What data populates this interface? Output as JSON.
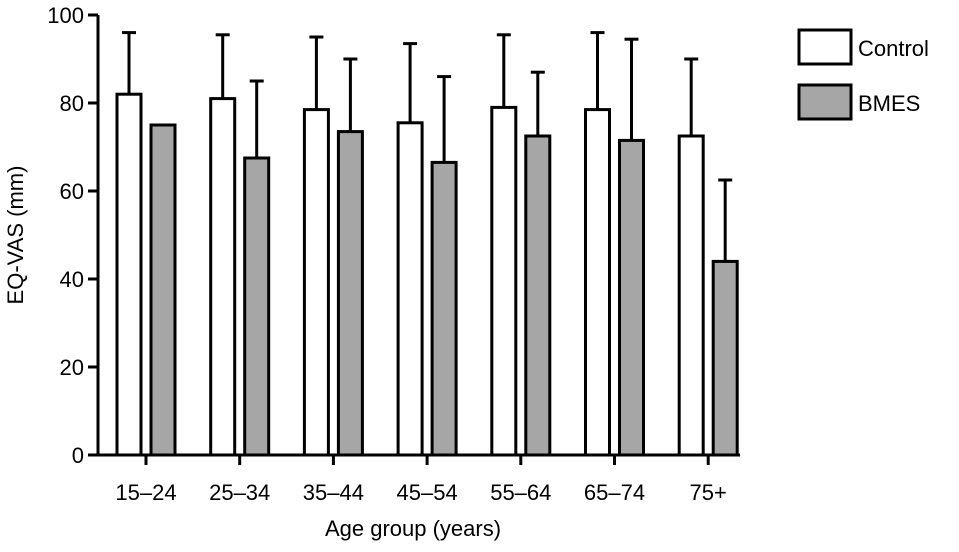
{
  "chart_data": {
    "type": "bar",
    "title": "",
    "xlabel": "Age group (years)",
    "ylabel": "EQ-VAS (mm)",
    "ylim": [
      0,
      100
    ],
    "yticks": [
      0,
      20,
      40,
      60,
      80,
      100
    ],
    "categories": [
      "15–24",
      "25–34",
      "35–44",
      "45–54",
      "55–64",
      "65–74",
      "75+"
    ],
    "series": [
      {
        "name": "Control",
        "color": "#ffffff",
        "values": [
          82,
          81,
          78.5,
          75.5,
          79,
          78.5,
          72.5
        ],
        "error_upper": [
          14,
          14.5,
          16.5,
          18,
          16.5,
          17.5,
          17.5
        ]
      },
      {
        "name": "BMES",
        "color": "#a6a6a6",
        "values": [
          75,
          67.5,
          73.5,
          66.5,
          72.5,
          71.5,
          44
        ],
        "error_upper": [
          0,
          17.5,
          16.5,
          19.5,
          14.5,
          23,
          18.5
        ]
      }
    ],
    "legend_position": "top-right",
    "grid": false
  }
}
